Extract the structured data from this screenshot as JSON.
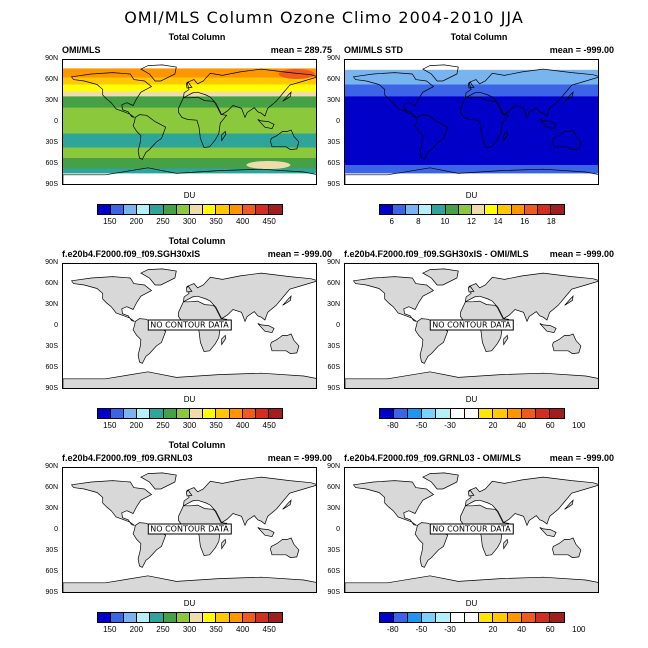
{
  "main_title": "OMI/MLS Column Ozone Climo 2004-2010 JJA",
  "lat_labels": [
    "90N",
    "60N",
    "30N",
    "0",
    "30S",
    "60S",
    "90S"
  ],
  "colors": {
    "ozone": [
      "#0000c8",
      "#3c64e6",
      "#78b4f0",
      "#b4f0fa",
      "#2da59b",
      "#46a046",
      "#8cc83c",
      "#f0dcaa",
      "#ffff00",
      "#ffc800",
      "#ff9600",
      "#f05a1e",
      "#d22d1e",
      "#a01e1e"
    ],
    "std": [
      "#0000c8",
      "#3c64e6",
      "#78b4f0",
      "#b4f0fa",
      "#2da59b",
      "#46a046",
      "#8cc83c",
      "#f0dcaa",
      "#ffff00",
      "#ffc800",
      "#ff9600",
      "#f05a1e",
      "#d22d1e",
      "#a01e1e"
    ],
    "diff": [
      "#0000c8",
      "#3c64e6",
      "#1e96f0",
      "#78d2fa",
      "#b4f0fa",
      "#ffffff",
      "#ffffff",
      "#ffe600",
      "#ffc800",
      "#ff9600",
      "#f05a1e",
      "#d22d1e",
      "#a01e1e"
    ],
    "land": "#d8d8d8"
  },
  "colorbars": {
    "ozone": {
      "units": "DU",
      "labels": [
        "150",
        "200",
        "250",
        "300",
        "350",
        "400",
        "450"
      ]
    },
    "std": {
      "units": "DU",
      "labels": [
        "6",
        "8",
        "10",
        "12",
        "14",
        "16",
        "18"
      ]
    },
    "diff": {
      "units": "DU",
      "labels": [
        "-80",
        "-50",
        "-30",
        "20",
        "40",
        "60",
        "100"
      ]
    }
  },
  "panels": [
    {
      "title": "Total Column",
      "left": "OMI/MLS",
      "right": "mean = 289.75",
      "no_data": "",
      "map": "ozone",
      "cbar": "ozone"
    },
    {
      "title": "Total Column",
      "left": "OMI/MLS STD",
      "right": "mean = -999.00",
      "no_data": "",
      "map": "std",
      "cbar": "std"
    },
    {
      "title": "Total Column",
      "left": "f.e20b4.F2000.f09_f09.SGH30xIS",
      "right": "mean = -999.00",
      "no_data": "NO CONTOUR DATA",
      "map": "land",
      "cbar": "ozone"
    },
    {
      "title": "",
      "left": "f.e20b4.F2000.f09_f09.SGH30xIS - OMI/MLS",
      "right": "mean = -999.00",
      "no_data": "NO CONTOUR DATA",
      "map": "land",
      "cbar": "diff"
    },
    {
      "title": "Total Column",
      "left": "f.e20b4.F2000.f09_f09.GRNL03",
      "right": "mean = -999.00",
      "no_data": "NO CONTOUR DATA",
      "map": "land",
      "cbar": "ozone"
    },
    {
      "title": "",
      "left": "f.e20b4.F2000.f09_f09.GRNL03 - OMI/MLS",
      "right": "mean = -999.00",
      "no_data": "NO CONTOUR DATA",
      "map": "land",
      "cbar": "diff"
    }
  ],
  "chart_data": [
    {
      "type": "heatmap",
      "title": "Total Column",
      "subtitle_left": "OMI/MLS",
      "subtitle_right": "mean = 289.75",
      "units": "DU",
      "ylim": [
        -90,
        90
      ],
      "colorbar_levels": [
        150,
        200,
        250,
        300,
        350,
        400,
        450
      ],
      "zonal_bands_DU": {
        "70N": 450,
        "60N": 400,
        "45N": 350,
        "30N": 300,
        "15N": 275,
        "0": 260,
        "30S": 275,
        "45S": 325,
        "60S": 325
      }
    },
    {
      "type": "heatmap",
      "title": "Total Column",
      "subtitle_left": "OMI/MLS STD",
      "subtitle_right": "mean = -999.00",
      "units": "DU",
      "ylim": [
        -90,
        90
      ],
      "colorbar_levels": [
        6,
        8,
        10,
        12,
        14,
        16,
        18
      ]
    },
    {
      "type": "heatmap",
      "title": "Total Column",
      "subtitle_left": "f.e20b4.F2000.f09_f09.SGH30xIS",
      "subtitle_right": "mean = -999.00",
      "units": "DU",
      "annotation": "NO CONTOUR DATA",
      "colorbar_levels": [
        150,
        200,
        250,
        300,
        350,
        400,
        450
      ]
    },
    {
      "type": "heatmap",
      "subtitle_left": "f.e20b4.F2000.f09_f09.SGH30xIS - OMI/MLS",
      "subtitle_right": "mean = -999.00",
      "units": "DU",
      "annotation": "NO CONTOUR DATA",
      "colorbar_levels": [
        -80,
        -50,
        -30,
        20,
        40,
        60,
        100
      ]
    },
    {
      "type": "heatmap",
      "title": "Total Column",
      "subtitle_left": "f.e20b4.F2000.f09_f09.GRNL03",
      "subtitle_right": "mean = -999.00",
      "units": "DU",
      "annotation": "NO CONTOUR DATA",
      "colorbar_levels": [
        150,
        200,
        250,
        300,
        350,
        400,
        450
      ]
    },
    {
      "type": "heatmap",
      "subtitle_left": "f.e20b4.F2000.f09_f09.GRNL03 - OMI/MLS",
      "subtitle_right": "mean = -999.00",
      "units": "DU",
      "annotation": "NO CONTOUR DATA",
      "colorbar_levels": [
        -80,
        -50,
        -30,
        20,
        40,
        60,
        100
      ]
    }
  ]
}
